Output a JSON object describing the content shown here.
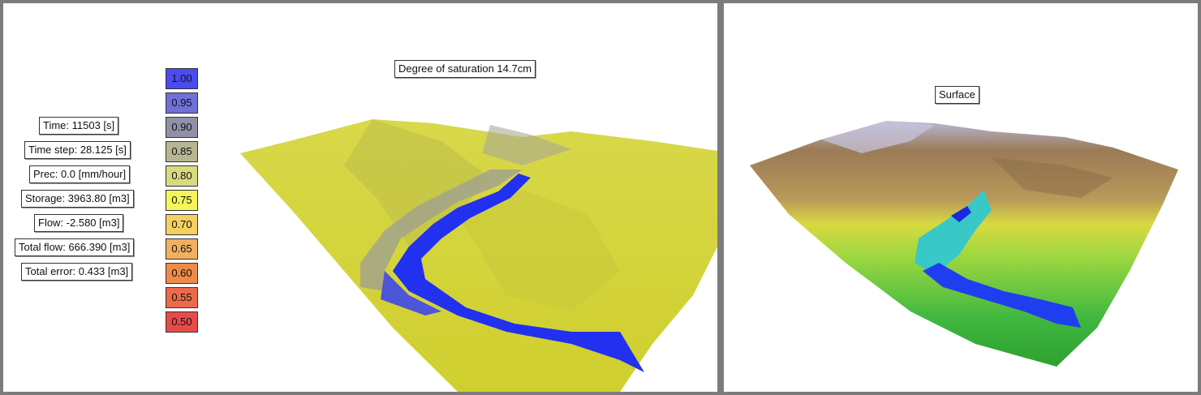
{
  "left_view": {
    "title": "Degree of saturation 14.7cm",
    "stats": [
      "Time: 11503 [s]",
      "Time step: 28.125 [s]",
      "Prec: 0.0 [mm/hour]",
      "Storage: 3963.80 [m3]",
      "Flow: -2.580 [m3]",
      "Total flow: 666.390 [m3]",
      "Total error: 0.433 [m3]"
    ],
    "legend": [
      {
        "label": "1.00",
        "color": "#4b4bf0"
      },
      {
        "label": "0.95",
        "color": "#7070d8"
      },
      {
        "label": "0.90",
        "color": "#9090a8"
      },
      {
        "label": "0.85",
        "color": "#b6b692"
      },
      {
        "label": "0.80",
        "color": "#d9d980"
      },
      {
        "label": "0.75",
        "color": "#f5f55a"
      },
      {
        "label": "0.70",
        "color": "#f5d060"
      },
      {
        "label": "0.65",
        "color": "#f0b060"
      },
      {
        "label": "0.60",
        "color": "#ee8a4a"
      },
      {
        "label": "0.55",
        "color": "#ec6a4a"
      },
      {
        "label": "0.50",
        "color": "#e84a4a"
      }
    ]
  },
  "right_view": {
    "title": "Surface"
  },
  "colors": {
    "terrain_yellow": "#d6d63a",
    "channel_blue": "#1f2ef0",
    "ridge_brown": "#9b7a55"
  }
}
